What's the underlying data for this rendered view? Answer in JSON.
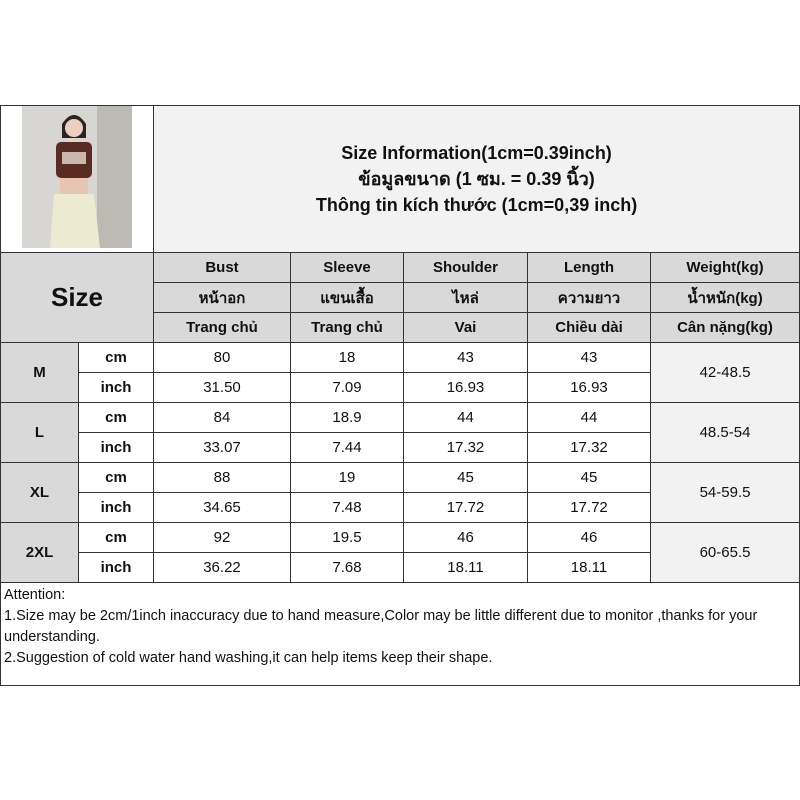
{
  "title_lines": [
    "Size Information(1cm=0.39inch)",
    "ข้อมูลขนาด (1 ซม. = 0.39 นิ้ว)",
    "Thông tin kích thước (1cm=0,39 inch)"
  ],
  "size_label": "Size",
  "columns": [
    {
      "en": "Bust",
      "th": "หน้าอก",
      "vi": "Trang chủ"
    },
    {
      "en": "Sleeve",
      "th": "แขนเสื้อ",
      "vi": "Trang chủ"
    },
    {
      "en": "Shoulder",
      "th": "ไหล่",
      "vi": "Vai"
    },
    {
      "en": "Length",
      "th": "ความยาว",
      "vi": "Chiều dài"
    },
    {
      "en": "Weight(kg)",
      "th": "น้ำหนัก(kg)",
      "vi": "Cân nặng(kg)"
    }
  ],
  "sizes": [
    {
      "name": "M",
      "cm": [
        "80",
        "18",
        "43",
        "43"
      ],
      "inch": [
        "31.50",
        "7.09",
        "16.93",
        "16.93"
      ],
      "weight": "42-48.5"
    },
    {
      "name": "L",
      "cm": [
        "84",
        "18.9",
        "44",
        "44"
      ],
      "inch": [
        "33.07",
        "7.44",
        "17.32",
        "17.32"
      ],
      "weight": "48.5-54"
    },
    {
      "name": "XL",
      "cm": [
        "88",
        "19",
        "45",
        "45"
      ],
      "inch": [
        "34.65",
        "7.48",
        "17.72",
        "17.72"
      ],
      "weight": "54-59.5"
    },
    {
      "name": "2XL",
      "cm": [
        "92",
        "19.5",
        "46",
        "46"
      ],
      "inch": [
        "36.22",
        "7.68",
        "18.11",
        "18.11"
      ],
      "weight": "60-65.5"
    }
  ],
  "units": {
    "cm": "cm",
    "inch": "inch"
  },
  "notes": [
    "Attention:",
    "1.Size may be 2cm/1inch inaccuracy due to hand measure,Color may be little different due to monitor ,thanks for your understanding.",
    "2.Suggestion of cold water hand washing,it can help items keep their shape."
  ]
}
